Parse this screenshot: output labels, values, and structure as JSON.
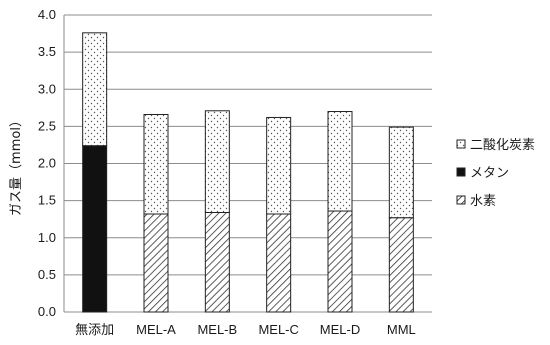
{
  "chart_data": {
    "type": "bar",
    "stacked": true,
    "categories": [
      "無添加",
      "MEL-A",
      "MEL-B",
      "MEL-C",
      "MEL-D",
      "MML"
    ],
    "series": [
      {
        "name": "水素",
        "values": [
          0.0,
          1.32,
          1.34,
          1.32,
          1.36,
          1.27
        ],
        "pattern": "diagonal-hatch"
      },
      {
        "name": "メタン",
        "values": [
          2.24,
          0.0,
          0.0,
          0.0,
          0.0,
          0.0
        ],
        "pattern": "solid-black"
      },
      {
        "name": "二酸化炭素",
        "values": [
          1.52,
          1.34,
          1.37,
          1.3,
          1.34,
          1.22
        ],
        "pattern": "dotted"
      }
    ],
    "legend_order": [
      "二酸化炭素",
      "メタン",
      "水素"
    ],
    "ylabel": "ガス量（mmol）",
    "ylim": [
      0,
      4.0
    ],
    "yticks": [
      "0.0",
      "0.5",
      "1.0",
      "1.5",
      "2.0",
      "2.5",
      "3.0",
      "3.5",
      "4.0"
    ],
    "grid": true,
    "legend_position": "right"
  }
}
